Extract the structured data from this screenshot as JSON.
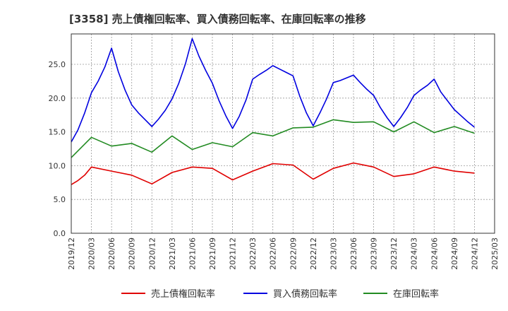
{
  "chart_data": {
    "type": "line",
    "title": "[3358]  売上債権回転率、買入債務回転率、在庫回転率の推移",
    "xlabel": "",
    "ylabel": "",
    "ylim": [
      0,
      29.5
    ],
    "yticks": [
      "0.0",
      "5.0",
      "10.0",
      "15.0",
      "20.0",
      "25.0"
    ],
    "ytick_values": [
      0,
      5,
      10,
      15,
      20,
      25
    ],
    "xtick_labels": [
      "2019/12",
      "2020/03",
      "2020/06",
      "2020/09",
      "2020/12",
      "2021/03",
      "2021/06",
      "2021/09",
      "2021/12",
      "2022/03",
      "2022/06",
      "2022/09",
      "2022/12",
      "2023/03",
      "2023/06",
      "2023/09",
      "2023/12",
      "2024/03",
      "2024/06",
      "2024/09",
      "2024/12",
      "2025/03"
    ],
    "grid": true,
    "legend_position": "bottom",
    "series": [
      {
        "name": "売上債権回転率",
        "color": "#e00000",
        "x": [
          0,
          1,
          2,
          3,
          6,
          9,
          12,
          15,
          18,
          21,
          24,
          27,
          30,
          33,
          36,
          39,
          42,
          45,
          48,
          51,
          54,
          57,
          60
        ],
        "values": [
          7.2,
          7.8,
          8.6,
          9.8,
          9.2,
          8.6,
          7.3,
          9.0,
          9.8,
          9.6,
          7.9,
          9.2,
          10.3,
          10.1,
          8.0,
          9.6,
          10.4,
          9.8,
          8.4,
          8.8,
          9.8,
          9.2,
          8.9
        ]
      },
      {
        "name": "買入債務回転率",
        "color": "#0000e0",
        "x": [
          0,
          1,
          2,
          3,
          4,
          5,
          6,
          7,
          8,
          9,
          10,
          11,
          12,
          13,
          14,
          15,
          16,
          17,
          18,
          19,
          20,
          21,
          22,
          23,
          24,
          25,
          26,
          27,
          28,
          29,
          30,
          31,
          32,
          33,
          34,
          35,
          36,
          37,
          38,
          39,
          40,
          41,
          42,
          43,
          44,
          45,
          46,
          47,
          48,
          49,
          50,
          51,
          52,
          53,
          54,
          55,
          56,
          57,
          58,
          59,
          60
        ],
        "values": [
          13.5,
          15.3,
          17.8,
          20.8,
          22.5,
          24.6,
          27.4,
          23.9,
          21.2,
          19.0,
          17.8,
          16.8,
          15.8,
          16.9,
          18.2,
          19.9,
          22.2,
          25.1,
          28.8,
          26.2,
          24.1,
          22.2,
          19.6,
          17.4,
          15.5,
          17.3,
          19.7,
          22.8,
          23.5,
          24.1,
          24.8,
          24.3,
          23.8,
          23.3,
          20.3,
          17.8,
          15.9,
          17.8,
          19.9,
          22.3,
          22.6,
          23.0,
          23.4,
          22.3,
          21.3,
          20.4,
          18.6,
          17.1,
          15.8,
          17.1,
          18.6,
          20.4,
          21.2,
          21.9,
          22.8,
          20.9,
          19.6,
          18.3,
          17.4,
          16.5,
          15.7
        ]
      },
      {
        "name": "在庫回転率",
        "color": "#228b22",
        "x": [
          0,
          3,
          6,
          9,
          12,
          15,
          18,
          21,
          24,
          27,
          30,
          33,
          36,
          39,
          42,
          45,
          48,
          51,
          54,
          57,
          60
        ],
        "values": [
          11.2,
          14.2,
          12.9,
          13.3,
          12.0,
          14.4,
          12.4,
          13.4,
          12.8,
          14.9,
          14.4,
          15.6,
          15.7,
          16.8,
          16.4,
          16.5,
          15.0,
          16.5,
          14.9,
          15.8,
          14.8
        ]
      }
    ]
  }
}
